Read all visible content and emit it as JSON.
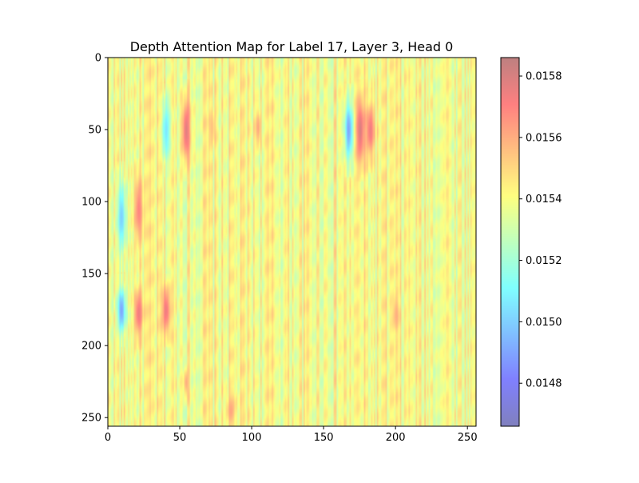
{
  "chart_data": {
    "type": "heatmap",
    "title": "Depth Attention Map for Label 17, Layer 3, Head 0",
    "xlabel": "",
    "ylabel": "",
    "grid": false,
    "xlim": [
      0,
      256
    ],
    "ylim": [
      256,
      0
    ],
    "x_ticks": [
      0,
      50,
      100,
      150,
      200,
      250
    ],
    "y_ticks": [
      0,
      50,
      100,
      150,
      200,
      250
    ],
    "x_tick_labels": [
      "0",
      "50",
      "100",
      "150",
      "200",
      "250"
    ],
    "y_tick_labels": [
      "0",
      "50",
      "100",
      "150",
      "200",
      "250"
    ],
    "colormap": "jet",
    "colormap_alpha": 0.5,
    "baseline_value": 0.0154,
    "colorbar": {
      "min": 0.01466,
      "max": 0.01586,
      "ticks": [
        0.0148,
        0.015,
        0.0152,
        0.0154,
        0.0156,
        0.0158
      ],
      "tick_labels": [
        "0.0148",
        "0.0150",
        "0.0152",
        "0.0154",
        "0.0156",
        "0.0158"
      ]
    },
    "hotspots": [
      {
        "col_center": 9,
        "col_width": 3,
        "row_center": 110,
        "row_height": 60,
        "value": 0.015
      },
      {
        "col_center": 21,
        "col_width": 3,
        "row_center": 105,
        "row_height": 55,
        "value": 0.0157
      },
      {
        "col_center": 9,
        "col_width": 3,
        "row_center": 175,
        "row_height": 40,
        "value": 0.0149
      },
      {
        "col_center": 21,
        "col_width": 3,
        "row_center": 177,
        "row_height": 40,
        "value": 0.01575
      },
      {
        "col_center": 40,
        "col_width": 3,
        "row_center": 50,
        "row_height": 50,
        "value": 0.01505
      },
      {
        "col_center": 54,
        "col_width": 3,
        "row_center": 50,
        "row_height": 55,
        "value": 0.01578
      },
      {
        "col_center": 40,
        "col_width": 3,
        "row_center": 175,
        "row_height": 40,
        "value": 0.01575
      },
      {
        "col_center": 167,
        "col_width": 3,
        "row_center": 50,
        "row_height": 50,
        "value": 0.0149
      },
      {
        "col_center": 175,
        "col_width": 3,
        "row_center": 50,
        "row_height": 55,
        "value": 0.0158
      },
      {
        "col_center": 182,
        "col_width": 3,
        "row_center": 50,
        "row_height": 45,
        "value": 0.01575
      },
      {
        "col_center": 104,
        "col_width": 2,
        "row_center": 48,
        "row_height": 30,
        "value": 0.01562
      },
      {
        "col_center": 72,
        "col_width": 2,
        "row_center": 48,
        "row_height": 30,
        "value": 0.01556
      },
      {
        "col_center": 200,
        "col_width": 2,
        "row_center": 178,
        "row_height": 30,
        "value": 0.0156
      },
      {
        "col_center": 85,
        "col_width": 3,
        "row_center": 245,
        "row_height": 25,
        "value": 0.01562
      },
      {
        "col_center": 54,
        "col_width": 2,
        "row_center": 225,
        "row_height": 25,
        "value": 0.0156
      }
    ]
  }
}
